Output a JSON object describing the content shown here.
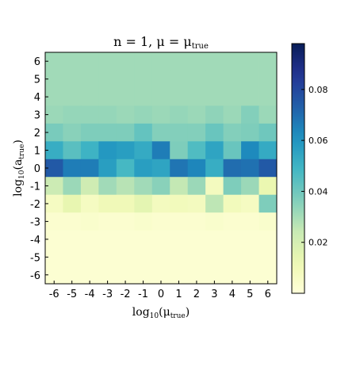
{
  "chart_data": {
    "type": "heatmap",
    "title": "n = 1,  μ = μ_true",
    "title_parts": {
      "main": "n = 1,  μ = μ",
      "sub": "true"
    },
    "xlabel_parts": {
      "pre": "log",
      "sub1": "10",
      "mid": "(μ",
      "sub2": "true",
      "post": ")"
    },
    "ylabel_parts": {
      "pre": "log",
      "sub1": "10",
      "mid": "(a",
      "sub2": "true",
      "post": ")"
    },
    "x": [
      -6,
      -5,
      -4,
      -3,
      -2,
      -1,
      0,
      1,
      2,
      3,
      4,
      5,
      6
    ],
    "y": [
      6,
      5,
      4,
      3,
      2,
      1,
      0,
      -1,
      -2,
      -3,
      -4,
      -5,
      -6
    ],
    "x_tick_labels": [
      "-6",
      "-5",
      "-4",
      "-3",
      "-2",
      "-1",
      "0",
      "1",
      "2",
      "3",
      "4",
      "5",
      "6"
    ],
    "y_tick_labels": [
      "6",
      "5",
      "4",
      "3",
      "2",
      "1",
      "0",
      "-1",
      "-2",
      "-3",
      "-4",
      "-5",
      "-6"
    ],
    "colorbar": {
      "colormap": "YlGnBu",
      "range": [
        0.0,
        0.098
      ],
      "ticks": [
        0.02,
        0.04,
        0.06,
        0.08
      ],
      "tick_labels": [
        "0.02",
        "0.04",
        "0.06",
        "0.08"
      ]
    },
    "values": [
      [
        0.031,
        0.031,
        0.031,
        0.031,
        0.031,
        0.031,
        0.031,
        0.031,
        0.031,
        0.031,
        0.031,
        0.031,
        0.031
      ],
      [
        0.031,
        0.031,
        0.031,
        0.031,
        0.031,
        0.031,
        0.031,
        0.031,
        0.031,
        0.031,
        0.031,
        0.031,
        0.031
      ],
      [
        0.031,
        0.031,
        0.031,
        0.031,
        0.031,
        0.031,
        0.031,
        0.031,
        0.031,
        0.031,
        0.031,
        0.031,
        0.031
      ],
      [
        0.032,
        0.033,
        0.033,
        0.033,
        0.032,
        0.033,
        0.032,
        0.033,
        0.032,
        0.034,
        0.032,
        0.036,
        0.032
      ],
      [
        0.038,
        0.035,
        0.037,
        0.037,
        0.037,
        0.042,
        0.036,
        0.036,
        0.036,
        0.041,
        0.036,
        0.037,
        0.04
      ],
      [
        0.052,
        0.044,
        0.05,
        0.059,
        0.057,
        0.053,
        0.066,
        0.037,
        0.046,
        0.055,
        0.041,
        0.063,
        0.053
      ],
      [
        0.075,
        0.066,
        0.066,
        0.057,
        0.048,
        0.057,
        0.055,
        0.068,
        0.064,
        0.052,
        0.07,
        0.069,
        0.075
      ],
      [
        0.023,
        0.032,
        0.022,
        0.031,
        0.027,
        0.031,
        0.035,
        0.025,
        0.032,
        0.008,
        0.037,
        0.032,
        0.013
      ],
      [
        0.007,
        0.014,
        0.007,
        0.01,
        0.01,
        0.015,
        0.008,
        0.009,
        0.008,
        0.026,
        0.009,
        0.007,
        0.037
      ],
      [
        0.003,
        0.003,
        0.004,
        0.003,
        0.003,
        0.004,
        0.003,
        0.003,
        0.003,
        0.004,
        0.003,
        0.003,
        0.004
      ],
      [
        0.002,
        0.002,
        0.002,
        0.002,
        0.002,
        0.002,
        0.002,
        0.002,
        0.002,
        0.002,
        0.002,
        0.002,
        0.002
      ],
      [
        0.002,
        0.002,
        0.002,
        0.002,
        0.002,
        0.002,
        0.002,
        0.002,
        0.002,
        0.002,
        0.002,
        0.002,
        0.002
      ],
      [
        0.002,
        0.002,
        0.002,
        0.002,
        0.002,
        0.002,
        0.002,
        0.002,
        0.002,
        0.002,
        0.002,
        0.002,
        0.002
      ]
    ]
  }
}
